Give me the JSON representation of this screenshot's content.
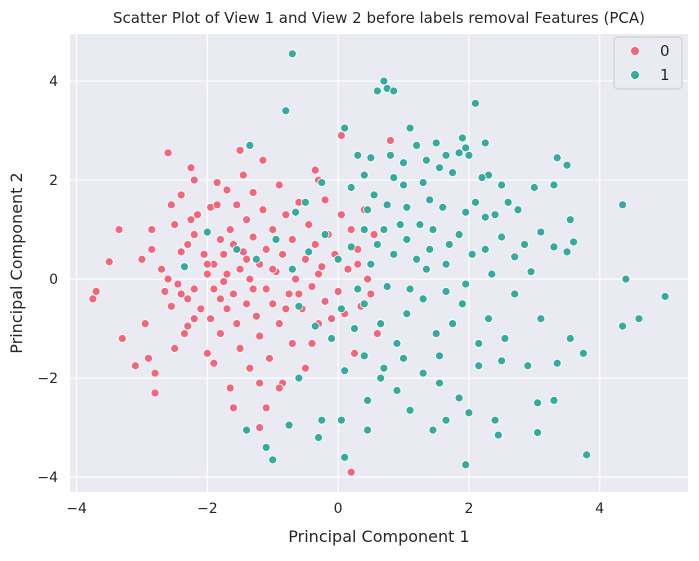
{
  "chart_data": {
    "type": "scatter",
    "title": "Scatter Plot of View 1 and View 2 before labels removal Features (PCA)",
    "xlabel": "Principal Component 1",
    "ylabel": "Principal Component 2",
    "xlim": [
      -4.1,
      5.35
    ],
    "ylim": [
      -4.3,
      4.95
    ],
    "xticks": [
      -4,
      -2,
      0,
      2,
      4
    ],
    "yticks": [
      -4,
      -2,
      0,
      2,
      4
    ],
    "grid": true,
    "legend_position": "top-right",
    "colors": {
      "plot_bg": "#eaeaf2",
      "grid": "#ffffff",
      "class0": "#f0677c",
      "class1": "#36ab9d"
    },
    "legend": [
      {
        "label": "0",
        "color": "#f0677c"
      },
      {
        "label": "1",
        "color": "#36ab9d"
      }
    ],
    "series": [
      {
        "name": "0",
        "color": "#f0677c",
        "points": [
          [
            -3.75,
            -0.4
          ],
          [
            -3.7,
            -0.25
          ],
          [
            -3.5,
            0.35
          ],
          [
            -3.35,
            1.0
          ],
          [
            -3.3,
            -1.2
          ],
          [
            -3.1,
            -1.75
          ],
          [
            -3.0,
            0.4
          ],
          [
            -2.95,
            -0.9
          ],
          [
            -2.9,
            -1.6
          ],
          [
            -2.85,
            1.0
          ],
          [
            -2.85,
            0.6
          ],
          [
            -2.8,
            -2.3
          ],
          [
            -2.7,
            0.2
          ],
          [
            -2.65,
            -0.25
          ],
          [
            -2.6,
            2.55
          ],
          [
            -2.55,
            1.5
          ],
          [
            -2.55,
            -0.55
          ],
          [
            -2.5,
            1.1
          ],
          [
            -2.5,
            -1.4
          ],
          [
            -2.45,
            -0.1
          ],
          [
            -2.4,
            1.7
          ],
          [
            -2.4,
            0.55
          ],
          [
            -2.35,
            -1.1
          ],
          [
            -2.3,
            -0.4
          ],
          [
            -2.3,
            -0.95
          ],
          [
            -2.25,
            2.25
          ],
          [
            -2.25,
            1.2
          ],
          [
            -2.2,
            2.0
          ],
          [
            -2.2,
            0.9
          ],
          [
            -2.2,
            -0.2
          ],
          [
            -2.15,
            1.3
          ],
          [
            -2.1,
            -0.6
          ],
          [
            -2.05,
            0.5
          ],
          [
            -2.0,
            -1.5
          ],
          [
            -2.0,
            0.1
          ],
          [
            -1.95,
            1.45
          ],
          [
            -1.95,
            -0.8
          ],
          [
            -1.9,
            0.3
          ],
          [
            -1.9,
            -0.2
          ],
          [
            -1.85,
            1.95
          ],
          [
            -1.85,
            1.5
          ],
          [
            -1.8,
            0.8
          ],
          [
            -1.8,
            -1.1
          ],
          [
            -1.75,
            0.5
          ],
          [
            -1.75,
            -0.05
          ],
          [
            -1.7,
            1.8
          ],
          [
            -1.7,
            -0.6
          ],
          [
            -1.65,
            1.0
          ],
          [
            -1.65,
            -2.2
          ],
          [
            -1.6,
            -0.3
          ],
          [
            -1.6,
            0.7
          ],
          [
            -1.55,
            1.5
          ],
          [
            -1.55,
            -0.9
          ],
          [
            -1.5,
            0.2
          ],
          [
            -1.5,
            -1.4
          ],
          [
            -1.45,
            2.1
          ],
          [
            -1.45,
            0.55
          ],
          [
            -1.4,
            -0.5
          ],
          [
            -1.4,
            1.2
          ],
          [
            -1.35,
            0.0
          ],
          [
            -1.35,
            -1.8
          ],
          [
            -1.3,
            1.75
          ],
          [
            -1.3,
            0.85
          ],
          [
            -1.25,
            -0.75
          ],
          [
            -1.2,
            0.3
          ],
          [
            -1.2,
            -1.15
          ],
          [
            -1.15,
            2.4
          ],
          [
            -1.15,
            1.4
          ],
          [
            -1.1,
            -0.2
          ],
          [
            -1.1,
            0.6
          ],
          [
            -1.05,
            -1.6
          ],
          [
            -1.0,
            1.0
          ],
          [
            -1.0,
            -0.5
          ],
          [
            -0.95,
            0.15
          ],
          [
            -0.9,
            1.9
          ],
          [
            -0.9,
            -0.9
          ],
          [
            -0.85,
            0.5
          ],
          [
            -0.85,
            -2.1
          ],
          [
            -0.8,
            1.3
          ],
          [
            -0.75,
            -0.3
          ],
          [
            -0.7,
            0.8
          ],
          [
            -0.7,
            -1.3
          ],
          [
            -0.65,
            0.0
          ],
          [
            -0.6,
            1.55
          ],
          [
            -0.55,
            -0.6
          ],
          [
            -0.5,
            0.4
          ],
          [
            -0.5,
            -1.8
          ],
          [
            -0.45,
            1.1
          ],
          [
            -0.4,
            -0.15
          ],
          [
            -0.35,
            2.2
          ],
          [
            -0.35,
            0.7
          ],
          [
            -0.3,
            -0.9
          ],
          [
            -0.25,
            0.25
          ],
          [
            -0.2,
            1.6
          ],
          [
            -0.2,
            -0.45
          ],
          [
            -0.15,
            0.9
          ],
          [
            -0.1,
            -1.2
          ],
          [
            -0.05,
            0.5
          ],
          [
            0.0,
            -0.25
          ],
          [
            0.05,
            1.3
          ],
          [
            0.05,
            2.9
          ],
          [
            0.1,
            -0.7
          ],
          [
            0.15,
            0.2
          ],
          [
            0.2,
            -3.9
          ],
          [
            0.2,
            1.0
          ],
          [
            0.25,
            -1.5
          ],
          [
            0.3,
            0.6
          ],
          [
            0.35,
            -0.55
          ],
          [
            0.4,
            1.4
          ],
          [
            0.45,
            0.0
          ],
          [
            0.5,
            -0.3
          ],
          [
            0.55,
            0.9
          ],
          [
            0.6,
            -1.1
          ],
          [
            -1.6,
            -2.6
          ],
          [
            -1.2,
            -3.0
          ],
          [
            -1.1,
            -2.6
          ],
          [
            -0.9,
            -2.2
          ],
          [
            -1.7,
            0.1
          ],
          [
            -2.0,
            0.3
          ],
          [
            -2.4,
            -0.3
          ],
          [
            -2.6,
            0.0
          ],
          [
            -1.4,
            0.4
          ],
          [
            -1.0,
            0.2
          ],
          [
            -0.6,
            -0.3
          ],
          [
            -0.3,
            0.1
          ],
          [
            0.3,
            0.3
          ],
          [
            -0.8,
            -0.6
          ],
          [
            -1.3,
            -0.2
          ],
          [
            -1.8,
            -0.4
          ],
          [
            -2.2,
            -0.8
          ],
          [
            -0.4,
            -1.3
          ],
          [
            -0.1,
            -0.8
          ],
          [
            0.8,
            2.8
          ],
          [
            -1.5,
            2.6
          ],
          [
            -0.3,
            2.0
          ],
          [
            -2.8,
            -1.9
          ],
          [
            -2.3,
            0.7
          ],
          [
            -1.9,
            -1.7
          ],
          [
            -1.2,
            -2.1
          ]
        ]
      },
      {
        "name": "1",
        "color": "#36ab9d",
        "points": [
          [
            -0.7,
            4.55
          ],
          [
            0.7,
            4.0
          ],
          [
            0.75,
            3.85
          ],
          [
            0.6,
            3.8
          ],
          [
            0.85,
            3.8
          ],
          [
            -0.8,
            3.4
          ],
          [
            2.1,
            3.55
          ],
          [
            0.1,
            3.05
          ],
          [
            1.1,
            3.05
          ],
          [
            1.5,
            2.75
          ],
          [
            1.9,
            2.85
          ],
          [
            2.25,
            2.75
          ],
          [
            1.95,
            2.65
          ],
          [
            1.85,
            2.55
          ],
          [
            0.8,
            2.5
          ],
          [
            1.2,
            2.7
          ],
          [
            -1.35,
            2.7
          ],
          [
            0.3,
            2.5
          ],
          [
            0.5,
            2.45
          ],
          [
            1.0,
            2.35
          ],
          [
            1.35,
            2.4
          ],
          [
            1.65,
            2.5
          ],
          [
            2.0,
            2.5
          ],
          [
            3.35,
            2.45
          ],
          [
            3.5,
            2.3
          ],
          [
            1.55,
            2.25
          ],
          [
            1.75,
            2.15
          ],
          [
            2.3,
            2.1
          ],
          [
            2.2,
            2.05
          ],
          [
            2.5,
            1.9
          ],
          [
            3.0,
            1.85
          ],
          [
            3.3,
            1.9
          ],
          [
            1.3,
            1.95
          ],
          [
            1.0,
            1.9
          ],
          [
            0.55,
            1.7
          ],
          [
            0.2,
            1.85
          ],
          [
            -0.25,
            1.95
          ],
          [
            -0.5,
            1.55
          ],
          [
            -0.65,
            1.35
          ],
          [
            0.45,
            1.4
          ],
          [
            0.75,
            1.5
          ],
          [
            1.05,
            1.45
          ],
          [
            1.4,
            1.6
          ],
          [
            1.6,
            1.45
          ],
          [
            1.95,
            1.35
          ],
          [
            2.25,
            1.25
          ],
          [
            2.6,
            1.55
          ],
          [
            2.75,
            1.4
          ],
          [
            2.4,
            1.3
          ],
          [
            2.1,
            1.55
          ],
          [
            3.55,
            1.2
          ],
          [
            3.6,
            0.75
          ],
          [
            3.5,
            0.55
          ],
          [
            3.3,
            0.65
          ],
          [
            3.1,
            0.95
          ],
          [
            2.85,
            0.7
          ],
          [
            2.7,
            0.45
          ],
          [
            2.5,
            0.85
          ],
          [
            2.25,
            0.6
          ],
          [
            2.05,
            0.5
          ],
          [
            1.85,
            0.9
          ],
          [
            1.65,
            0.3
          ],
          [
            1.4,
            0.6
          ],
          [
            1.2,
            0.4
          ],
          [
            1.05,
            0.8
          ],
          [
            0.85,
            0.5
          ],
          [
            0.6,
            0.7
          ],
          [
            0.4,
            1.0
          ],
          [
            0.2,
            0.65
          ],
          [
            0.0,
            0.4
          ],
          [
            -0.2,
            0.9
          ],
          [
            -0.45,
            0.55
          ],
          [
            -0.7,
            0.2
          ],
          [
            -0.95,
            0.8
          ],
          [
            -1.25,
            0.4
          ],
          [
            -1.55,
            0.6
          ],
          [
            -2.0,
            0.95
          ],
          [
            -2.35,
            0.25
          ],
          [
            4.35,
            1.5
          ],
          [
            4.4,
            0.0
          ],
          [
            5.0,
            -0.35
          ],
          [
            4.6,
            -0.8
          ],
          [
            4.35,
            -0.95
          ],
          [
            3.75,
            -1.5
          ],
          [
            3.55,
            -1.2
          ],
          [
            3.1,
            -0.8
          ],
          [
            2.9,
            -1.75
          ],
          [
            3.05,
            -2.5
          ],
          [
            3.3,
            -2.45
          ],
          [
            3.35,
            -1.7
          ],
          [
            3.8,
            -3.55
          ],
          [
            3.05,
            -3.1
          ],
          [
            2.45,
            -3.15
          ],
          [
            2.4,
            -2.85
          ],
          [
            2.5,
            -1.65
          ],
          [
            2.15,
            -1.75
          ],
          [
            2.55,
            -1.2
          ],
          [
            2.3,
            -0.8
          ],
          [
            1.9,
            -0.5
          ],
          [
            1.75,
            -0.9
          ],
          [
            1.5,
            -1.1
          ],
          [
            1.65,
            -0.25
          ],
          [
            1.3,
            -0.4
          ],
          [
            1.05,
            -0.7
          ],
          [
            0.9,
            -1.3
          ],
          [
            0.65,
            -0.9
          ],
          [
            0.4,
            -0.5
          ],
          [
            0.25,
            -1.0
          ],
          [
            0.05,
            -0.6
          ],
          [
            -0.1,
            -1.2
          ],
          [
            -0.35,
            -0.95
          ],
          [
            -0.6,
            -0.55
          ],
          [
            0.7,
            -1.8
          ],
          [
            1.0,
            -1.6
          ],
          [
            1.3,
            -1.9
          ],
          [
            1.55,
            -2.1
          ],
          [
            1.85,
            -2.4
          ],
          [
            2.0,
            -2.7
          ],
          [
            1.65,
            -2.85
          ],
          [
            1.45,
            -3.05
          ],
          [
            1.95,
            -3.75
          ],
          [
            1.95,
            -3.75
          ],
          [
            1.1,
            -2.65
          ],
          [
            0.65,
            -2.0
          ],
          [
            0.4,
            -1.55
          ],
          [
            0.1,
            -1.85
          ],
          [
            0.45,
            -2.45
          ],
          [
            0.05,
            -2.85
          ],
          [
            -0.25,
            -2.85
          ],
          [
            -0.3,
            -3.2
          ],
          [
            0.45,
            -3.05
          ],
          [
            0.1,
            -3.6
          ],
          [
            -0.75,
            -2.95
          ],
          [
            -1.4,
            -3.05
          ],
          [
            -1.1,
            -3.4
          ],
          [
            -1.0,
            -3.65
          ],
          [
            -0.6,
            -2.0
          ],
          [
            0.9,
            -2.25
          ],
          [
            1.55,
            -1.55
          ],
          [
            2.15,
            -1.3
          ],
          [
            2.7,
            -0.3
          ],
          [
            2.95,
            0.15
          ],
          [
            2.35,
            0.1
          ],
          [
            1.95,
            -0.1
          ],
          [
            1.7,
            0.7
          ],
          [
            1.45,
            1.0
          ],
          [
            1.25,
            1.1
          ],
          [
            0.95,
            1.1
          ],
          [
            0.7,
            1.0
          ],
          [
            0.5,
            0.3
          ],
          [
            0.3,
            -0.2
          ],
          [
            0.75,
            -0.15
          ],
          [
            1.1,
            -0.2
          ],
          [
            1.35,
            0.2
          ],
          [
            0.85,
            2.05
          ],
          [
            0.4,
            2.1
          ]
        ]
      }
    ]
  }
}
